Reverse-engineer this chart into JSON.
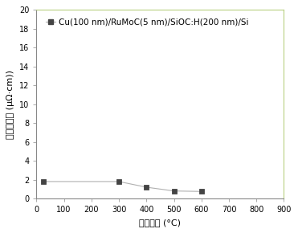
{
  "x_data": [
    25,
    300,
    400,
    500,
    600
  ],
  "y_data": [
    1.8,
    1.8,
    1.2,
    0.8,
    0.75
  ],
  "xlim": [
    0,
    900
  ],
  "ylim": [
    0,
    20
  ],
  "xticks": [
    0,
    100,
    200,
    300,
    400,
    500,
    600,
    700,
    800,
    900
  ],
  "yticks": [
    0,
    2,
    4,
    6,
    8,
    10,
    12,
    14,
    16,
    18,
    20
  ],
  "xlabel": "退火温度 (°C)",
  "ylabel": "方块电阴率 (μΩ·cm))",
  "legend_label": "Cu(100 nm)/RuMoC(5 nm)/SiOC:H(200 nm)/Si",
  "line_color": "#b0b0b0",
  "marker_color": "#444444",
  "marker": "s",
  "marker_size": 4,
  "line_width": 0.8,
  "spine_top_color": "#b8d080",
  "spine_right_color": "#b8d080",
  "spine_bottom_color": "#888888",
  "spine_left_color": "#888888",
  "background_color": "#ffffff",
  "axis_fontsize": 8,
  "tick_fontsize": 7,
  "legend_fontsize": 7.5
}
